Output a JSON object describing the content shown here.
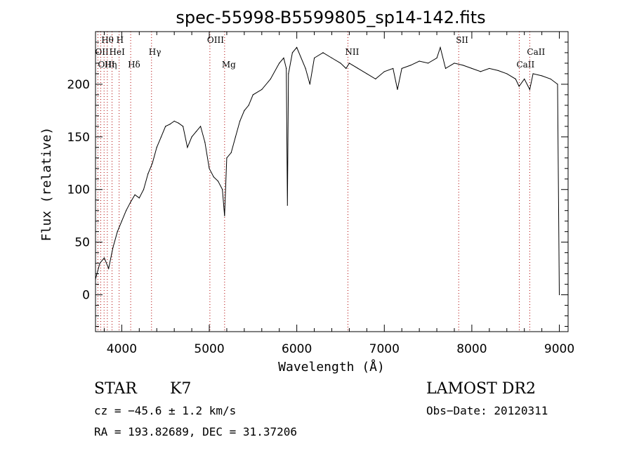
{
  "chart_data": {
    "type": "line",
    "title": "spec-55998-B5599805_sp14-142.fits",
    "xlabel": "Wavelength (Å)",
    "ylabel": "Flux (relative)",
    "xlim": [
      3700,
      9100
    ],
    "ylim": [
      -35,
      250
    ],
    "xticks": [
      4000,
      5000,
      6000,
      7000,
      8000,
      9000
    ],
    "yticks": [
      0,
      50,
      100,
      150,
      200
    ],
    "grid": false,
    "series": [
      {
        "x": [
          3700,
          3750,
          3800,
          3850,
          3900,
          3950,
          4000,
          4050,
          4100,
          4150,
          4200,
          4250,
          4300,
          4350,
          4400,
          4450,
          4500,
          4550,
          4600,
          4650,
          4700,
          4750,
          4800,
          4850,
          4900,
          4950,
          5000,
          5050,
          5100,
          5150,
          5175,
          5200,
          5250,
          5300,
          5350,
          5400,
          5450,
          5500,
          5600,
          5700,
          5800,
          5850,
          5880,
          5893,
          5905,
          5950,
          6000,
          6100,
          6150,
          6200,
          6300,
          6400,
          6500,
          6563,
          6600,
          6700,
          6800,
          6900,
          7000,
          7100,
          7150,
          7200,
          7300,
          7400,
          7500,
          7600,
          7640,
          7700,
          7800,
          7900,
          8000,
          8100,
          8200,
          8300,
          8400,
          8500,
          8540,
          8600,
          8662,
          8700,
          8800,
          8900,
          8980,
          9000
        ],
        "y": [
          15,
          30,
          35,
          25,
          45,
          60,
          70,
          80,
          88,
          95,
          92,
          100,
          115,
          125,
          140,
          150,
          160,
          162,
          165,
          163,
          160,
          140,
          150,
          155,
          160,
          145,
          120,
          112,
          108,
          100,
          75,
          130,
          135,
          150,
          165,
          175,
          180,
          190,
          195,
          205,
          220,
          225,
          215,
          85,
          210,
          230,
          235,
          215,
          200,
          225,
          230,
          225,
          220,
          215,
          220,
          215,
          210,
          205,
          212,
          215,
          195,
          215,
          218,
          222,
          220,
          225,
          235,
          215,
          220,
          218,
          215,
          212,
          215,
          213,
          210,
          205,
          198,
          205,
          195,
          210,
          208,
          205,
          200,
          0
        ]
      }
    ],
    "spectral_lines": [
      {
        "label": "Hθ",
        "wavelength": 3798,
        "row": 1
      },
      {
        "label": "H",
        "wavelength": 3970,
        "row": 1
      },
      {
        "label": "OII",
        "wavelength": 3727,
        "row": 2
      },
      {
        "label": "HeI",
        "wavelength": 3889,
        "row": 2
      },
      {
        "label": "OIII",
        "wavelength": 3760,
        "row": 3
      },
      {
        "label": "Hη",
        "wavelength": 3835,
        "row": 3
      },
      {
        "label": "Hδ",
        "wavelength": 4102,
        "row": 3
      },
      {
        "label": "Hγ",
        "wavelength": 4340,
        "row": 2
      },
      {
        "label": "OIII",
        "wavelength": 5007,
        "row": 1
      },
      {
        "label": "Mg",
        "wavelength": 5175,
        "row": 3
      },
      {
        "label": "NII",
        "wavelength": 6584,
        "row": 2
      },
      {
        "label": "SII",
        "wavelength": 7850,
        "row": 1
      },
      {
        "label": "CaII",
        "wavelength": 8542,
        "row": 3
      },
      {
        "label": "CaII",
        "wavelength": 8662,
        "row": 2
      }
    ]
  },
  "info": {
    "object_class": "STAR",
    "subclass": "K7",
    "survey": "LAMOST DR2",
    "cz": "cz = −45.6 ± 1.2 km/s",
    "obs_date": "Obs−Date: 20120311",
    "coords": "RA = 193.82689, DEC =  31.37206"
  }
}
